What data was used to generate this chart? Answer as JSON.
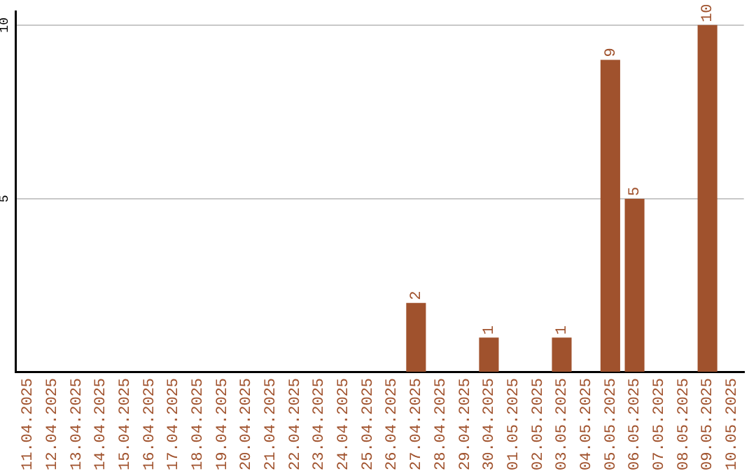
{
  "chart_data": {
    "type": "bar",
    "categories": [
      "11.04.2025",
      "12.04.2025",
      "13.04.2025",
      "14.04.2025",
      "15.04.2025",
      "16.04.2025",
      "17.04.2025",
      "18.04.2025",
      "19.04.2025",
      "20.04.2025",
      "21.04.2025",
      "22.04.2025",
      "23.04.2025",
      "24.04.2025",
      "25.04.2025",
      "26.04.2025",
      "27.04.2025",
      "28.04.2025",
      "29.04.2025",
      "30.04.2025",
      "01.05.2025",
      "02.05.2025",
      "03.05.2025",
      "04.05.2025",
      "05.05.2025",
      "06.05.2025",
      "07.05.2025",
      "08.05.2025",
      "09.05.2025",
      "10.05.2025"
    ],
    "values": [
      0,
      0,
      0,
      0,
      0,
      0,
      0,
      0,
      0,
      0,
      0,
      0,
      0,
      0,
      0,
      0,
      2,
      0,
      0,
      1,
      0,
      0,
      1,
      0,
      9,
      5,
      0,
      0,
      10,
      0
    ],
    "value_labels": [
      null,
      null,
      null,
      null,
      null,
      null,
      null,
      null,
      null,
      null,
      null,
      null,
      null,
      null,
      null,
      null,
      "2",
      null,
      null,
      "1",
      null,
      null,
      "1",
      null,
      "9",
      "5",
      null,
      null,
      "10",
      null
    ],
    "color": "#a0522d",
    "ylim": [
      0,
      10.4
    ],
    "yticks": [
      {
        "value": 0,
        "label": null
      },
      5,
      10
    ],
    "grid": "y",
    "legend": false
  }
}
